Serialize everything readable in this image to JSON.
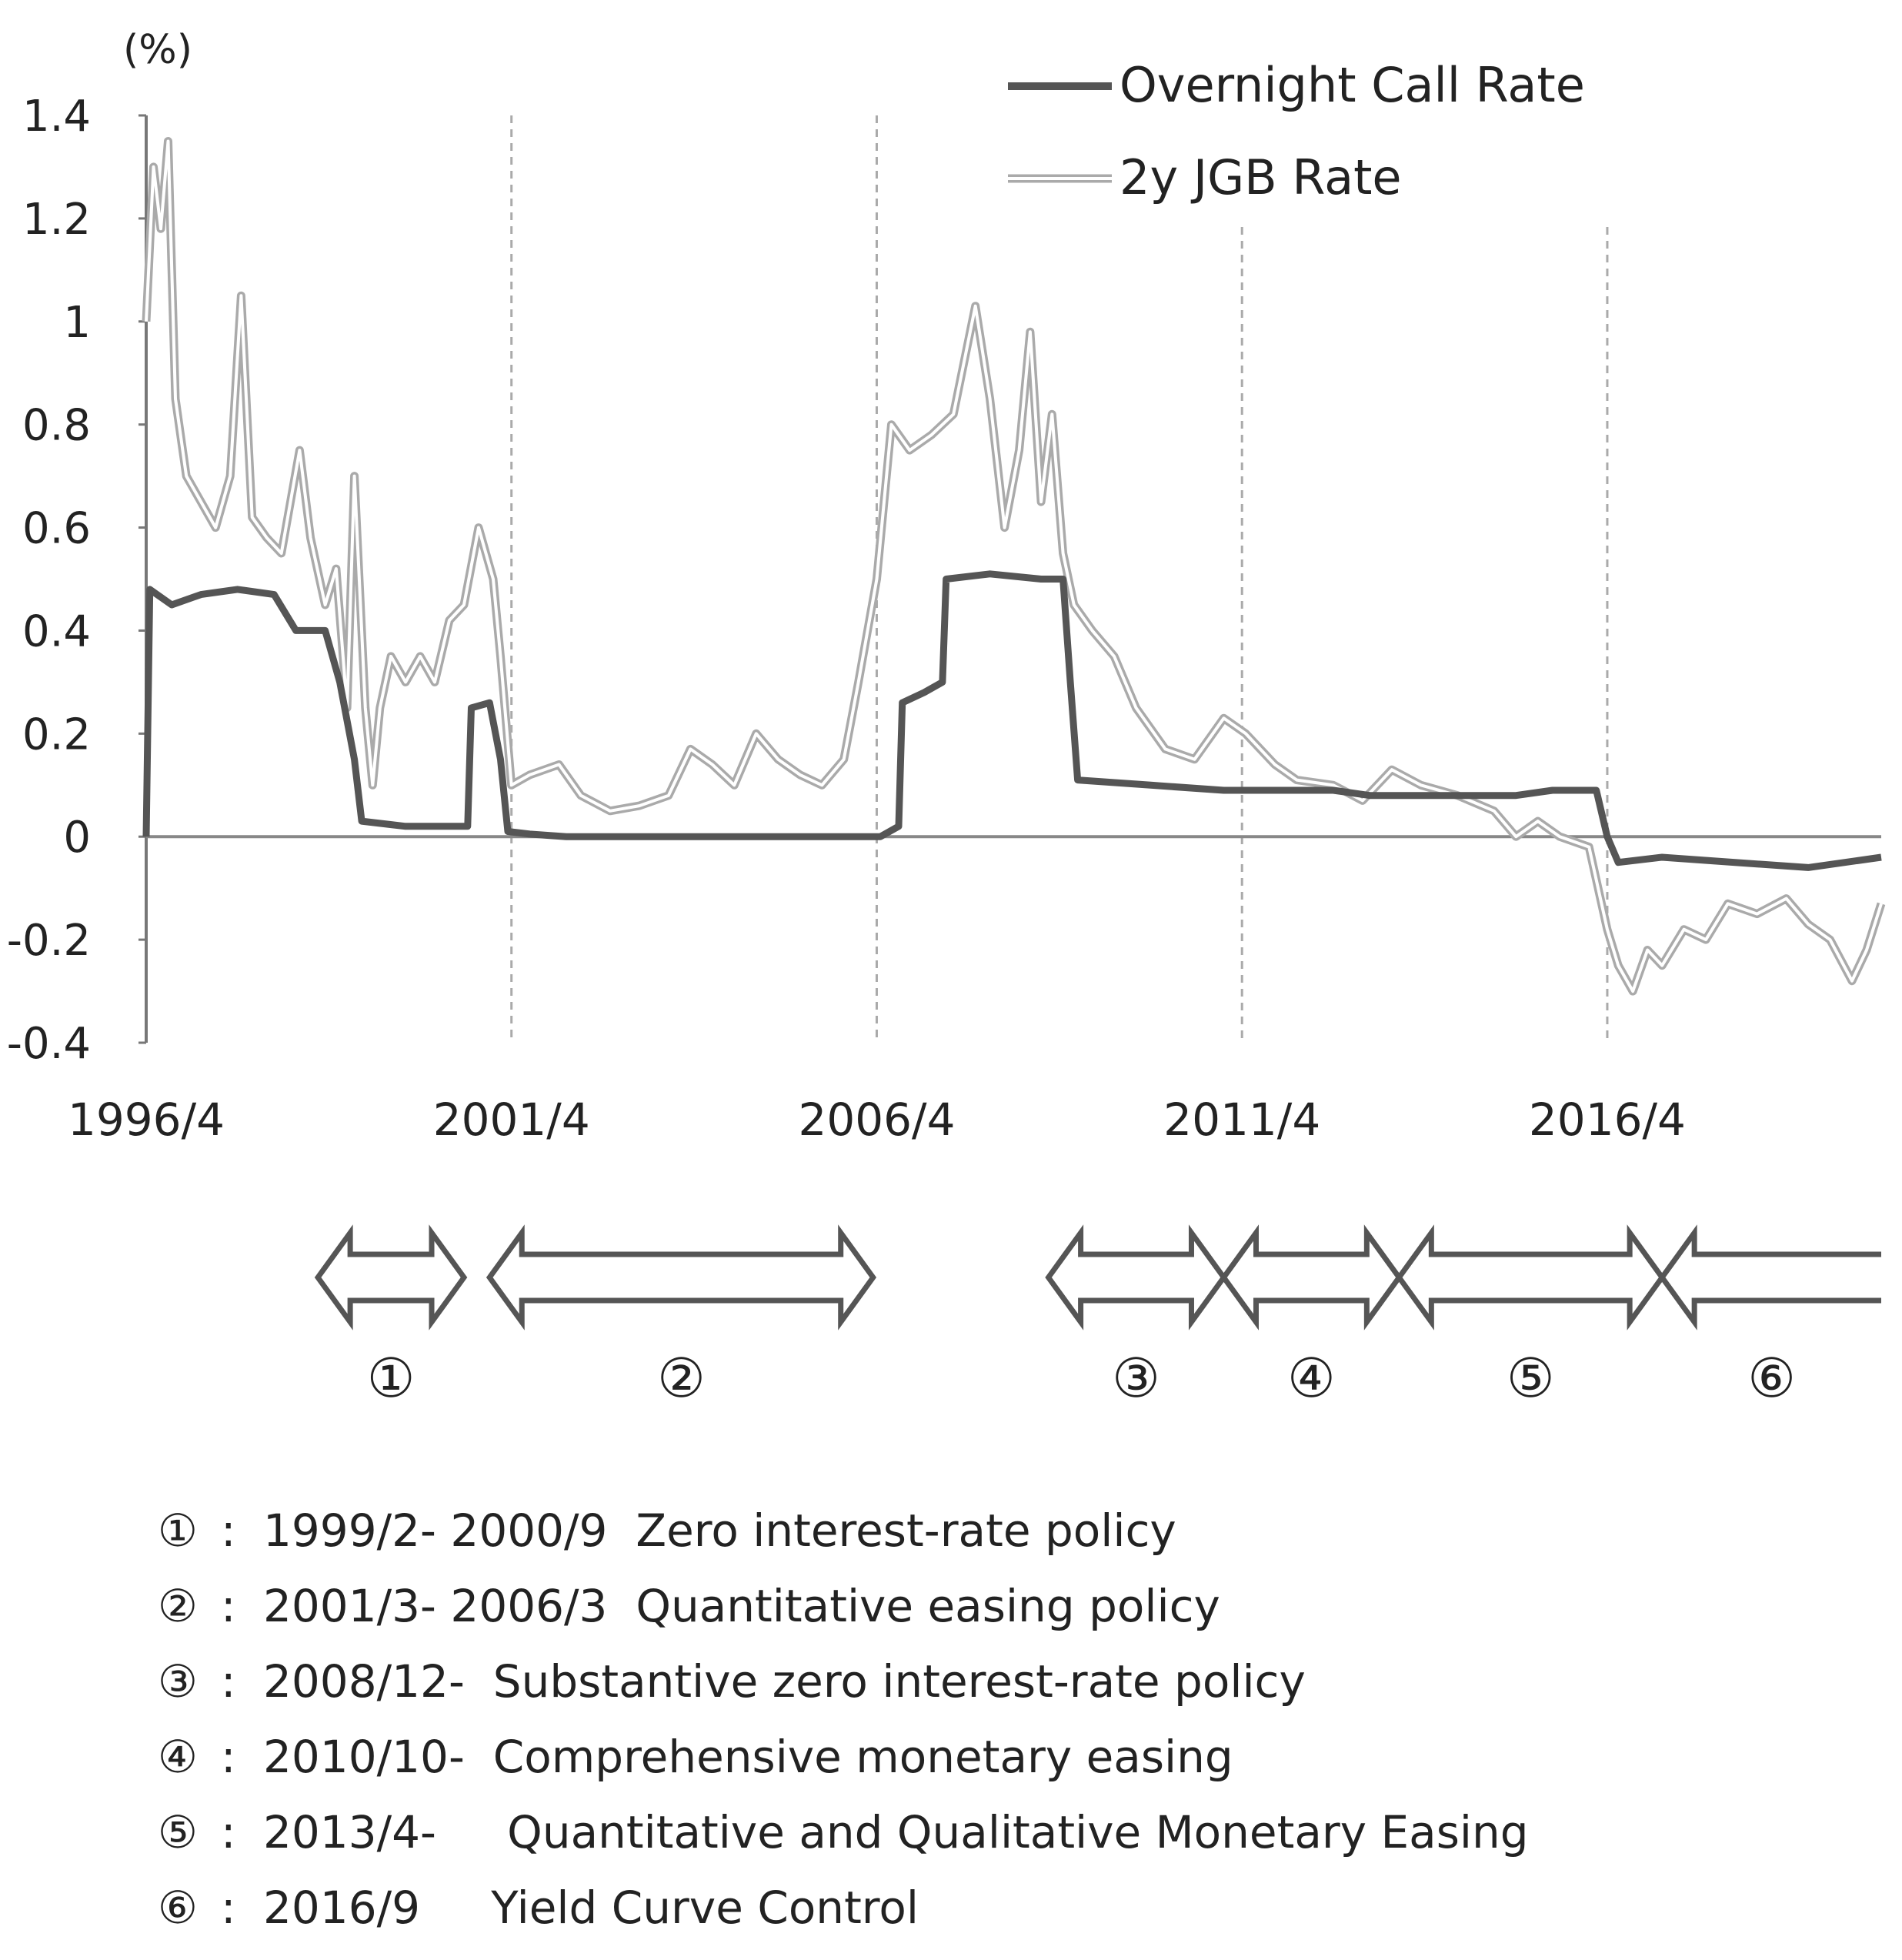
{
  "chart_data": {
    "type": "line",
    "title": "",
    "ylabel": "(%)",
    "xlabel": "",
    "ylim": [
      -0.4,
      1.4
    ],
    "yticks": [
      "1.4",
      "1.2",
      "1",
      "0.8",
      "0.6",
      "0.4",
      "0.2",
      "0",
      "-0.2",
      "-0.4"
    ],
    "ytick_values": [
      1.4,
      1.2,
      1.0,
      0.8,
      0.6,
      0.4,
      0.2,
      0.0,
      -0.2,
      -0.4
    ],
    "xlim": [
      1996.25,
      2020.0
    ],
    "xticks": [
      "1996/4",
      "2001/4",
      "2006/4",
      "2011/4",
      "2016/4"
    ],
    "xtick_values": [
      1996.25,
      2001.25,
      2006.25,
      2011.25,
      2016.25
    ],
    "dashed_vlines": [
      2001.25,
      2006.25,
      2011.25,
      2016.25
    ],
    "legend_position": "top-right",
    "series": [
      {
        "name": "Overnight Call Rate",
        "color": "#555555",
        "style": "solid-thick",
        "points": [
          [
            1996.25,
            0.0
          ],
          [
            1996.3,
            0.48
          ],
          [
            1996.6,
            0.45
          ],
          [
            1997.0,
            0.47
          ],
          [
            1997.5,
            0.48
          ],
          [
            1998.0,
            0.47
          ],
          [
            1998.3,
            0.4
          ],
          [
            1998.7,
            0.4
          ],
          [
            1998.9,
            0.3
          ],
          [
            1999.1,
            0.15
          ],
          [
            1999.2,
            0.03
          ],
          [
            1999.8,
            0.02
          ],
          [
            2000.4,
            0.02
          ],
          [
            2000.65,
            0.02
          ],
          [
            2000.7,
            0.25
          ],
          [
            2000.95,
            0.26
          ],
          [
            2001.1,
            0.15
          ],
          [
            2001.2,
            0.01
          ],
          [
            2001.5,
            0.005
          ],
          [
            2002.0,
            0.0
          ],
          [
            2003.0,
            0.0
          ],
          [
            2004.0,
            0.0
          ],
          [
            2005.0,
            0.0
          ],
          [
            2006.0,
            0.0
          ],
          [
            2006.3,
            0.0
          ],
          [
            2006.55,
            0.02
          ],
          [
            2006.6,
            0.26
          ],
          [
            2006.9,
            0.28
          ],
          [
            2007.15,
            0.3
          ],
          [
            2007.2,
            0.5
          ],
          [
            2007.8,
            0.51
          ],
          [
            2008.5,
            0.5
          ],
          [
            2008.8,
            0.5
          ],
          [
            2008.9,
            0.3
          ],
          [
            2009.0,
            0.11
          ],
          [
            2010.0,
            0.1
          ],
          [
            2011.0,
            0.09
          ],
          [
            2011.5,
            0.09
          ],
          [
            2012.5,
            0.09
          ],
          [
            2013.0,
            0.08
          ],
          [
            2014.0,
            0.08
          ],
          [
            2015.0,
            0.08
          ],
          [
            2015.5,
            0.09
          ],
          [
            2016.1,
            0.09
          ],
          [
            2016.25,
            0.0
          ],
          [
            2016.4,
            -0.05
          ],
          [
            2017.0,
            -0.04
          ],
          [
            2018.0,
            -0.05
          ],
          [
            2019.0,
            -0.06
          ],
          [
            2020.0,
            -0.04
          ]
        ]
      },
      {
        "name": "2y JGB Rate",
        "color": "#aaaaaa",
        "style": "double-line",
        "points": [
          [
            1996.25,
            1.0
          ],
          [
            1996.35,
            1.3
          ],
          [
            1996.45,
            1.18
          ],
          [
            1996.55,
            1.35
          ],
          [
            1996.65,
            0.85
          ],
          [
            1996.8,
            0.7
          ],
          [
            1997.0,
            0.65
          ],
          [
            1997.2,
            0.6
          ],
          [
            1997.4,
            0.7
          ],
          [
            1997.55,
            1.05
          ],
          [
            1997.7,
            0.62
          ],
          [
            1997.9,
            0.58
          ],
          [
            1998.1,
            0.55
          ],
          [
            1998.35,
            0.75
          ],
          [
            1998.5,
            0.58
          ],
          [
            1998.7,
            0.45
          ],
          [
            1998.85,
            0.52
          ],
          [
            1999.0,
            0.25
          ],
          [
            1999.1,
            0.7
          ],
          [
            1999.25,
            0.25
          ],
          [
            1999.35,
            0.1
          ],
          [
            1999.45,
            0.25
          ],
          [
            1999.6,
            0.35
          ],
          [
            1999.8,
            0.3
          ],
          [
            2000.0,
            0.35
          ],
          [
            2000.2,
            0.3
          ],
          [
            2000.4,
            0.42
          ],
          [
            2000.6,
            0.45
          ],
          [
            2000.8,
            0.6
          ],
          [
            2001.0,
            0.5
          ],
          [
            2001.1,
            0.35
          ],
          [
            2001.25,
            0.1
          ],
          [
            2001.5,
            0.12
          ],
          [
            2001.9,
            0.14
          ],
          [
            2002.2,
            0.08
          ],
          [
            2002.6,
            0.05
          ],
          [
            2003.0,
            0.06
          ],
          [
            2003.4,
            0.08
          ],
          [
            2003.7,
            0.17
          ],
          [
            2004.0,
            0.14
          ],
          [
            2004.3,
            0.1
          ],
          [
            2004.6,
            0.2
          ],
          [
            2004.9,
            0.15
          ],
          [
            2005.2,
            0.12
          ],
          [
            2005.5,
            0.1
          ],
          [
            2005.8,
            0.15
          ],
          [
            2006.0,
            0.3
          ],
          [
            2006.25,
            0.5
          ],
          [
            2006.45,
            0.8
          ],
          [
            2006.7,
            0.75
          ],
          [
            2007.0,
            0.78
          ],
          [
            2007.3,
            0.82
          ],
          [
            2007.6,
            1.03
          ],
          [
            2007.8,
            0.85
          ],
          [
            2008.0,
            0.6
          ],
          [
            2008.2,
            0.75
          ],
          [
            2008.35,
            0.98
          ],
          [
            2008.5,
            0.65
          ],
          [
            2008.65,
            0.82
          ],
          [
            2008.8,
            0.55
          ],
          [
            2008.95,
            0.45
          ],
          [
            2009.2,
            0.4
          ],
          [
            2009.5,
            0.35
          ],
          [
            2009.8,
            0.25
          ],
          [
            2010.2,
            0.17
          ],
          [
            2010.6,
            0.15
          ],
          [
            2011.0,
            0.23
          ],
          [
            2011.3,
            0.2
          ],
          [
            2011.7,
            0.14
          ],
          [
            2012.0,
            0.11
          ],
          [
            2012.5,
            0.1
          ],
          [
            2012.9,
            0.07
          ],
          [
            2013.3,
            0.13
          ],
          [
            2013.7,
            0.1
          ],
          [
            2014.2,
            0.08
          ],
          [
            2014.7,
            0.05
          ],
          [
            2015.0,
            0.0
          ],
          [
            2015.3,
            0.03
          ],
          [
            2015.6,
            0.0
          ],
          [
            2016.0,
            -0.02
          ],
          [
            2016.25,
            -0.18
          ],
          [
            2016.4,
            -0.25
          ],
          [
            2016.6,
            -0.3
          ],
          [
            2016.8,
            -0.22
          ],
          [
            2017.0,
            -0.25
          ],
          [
            2017.3,
            -0.18
          ],
          [
            2017.6,
            -0.2
          ],
          [
            2017.9,
            -0.13
          ],
          [
            2018.3,
            -0.15
          ],
          [
            2018.7,
            -0.12
          ],
          [
            2019.0,
            -0.17
          ],
          [
            2019.3,
            -0.2
          ],
          [
            2019.6,
            -0.28
          ],
          [
            2019.8,
            -0.22
          ],
          [
            2020.0,
            -0.13
          ]
        ]
      }
    ],
    "policy_periods": [
      {
        "label": "①",
        "start": 1998.6,
        "end": 2000.6,
        "left_head": "arrow",
        "right_head": "arrow"
      },
      {
        "label": "②",
        "start": 2000.95,
        "end": 2006.2,
        "left_head": "arrow",
        "right_head": "arrow"
      },
      {
        "label": "③",
        "start": 2008.6,
        "end": 2011.0,
        "left_head": "arrow",
        "right_head": "arrow"
      },
      {
        "label": "④",
        "start": 2011.0,
        "end": 2013.4,
        "left_head": "arrow",
        "right_head": "arrow"
      },
      {
        "label": "⑤",
        "start": 2013.4,
        "end": 2017.0,
        "left_head": "arrow",
        "right_head": "arrow"
      },
      {
        "label": "⑥",
        "start": 2017.0,
        "end": 2020.1,
        "left_head": "arrow",
        "right_head": "open"
      }
    ]
  },
  "policy_notes": [
    {
      "num": "①",
      "period": "1999/2- 2000/9",
      "desc": "Zero interest-rate policy"
    },
    {
      "num": "②",
      "period": "2001/3- 2006/3",
      "desc": "Quantitative easing policy"
    },
    {
      "num": "③",
      "period": "2008/12-",
      "desc": "Substantive zero interest-rate policy"
    },
    {
      "num": "④",
      "period": "2010/10-",
      "desc": "Comprehensive monetary easing"
    },
    {
      "num": "⑤",
      "period": "2013/4-",
      "desc": "Quantitative and Qualitative Monetary Easing"
    },
    {
      "num": "⑥",
      "period": "2016/9",
      "desc": "Yield Curve Control"
    }
  ],
  "separator": ":"
}
